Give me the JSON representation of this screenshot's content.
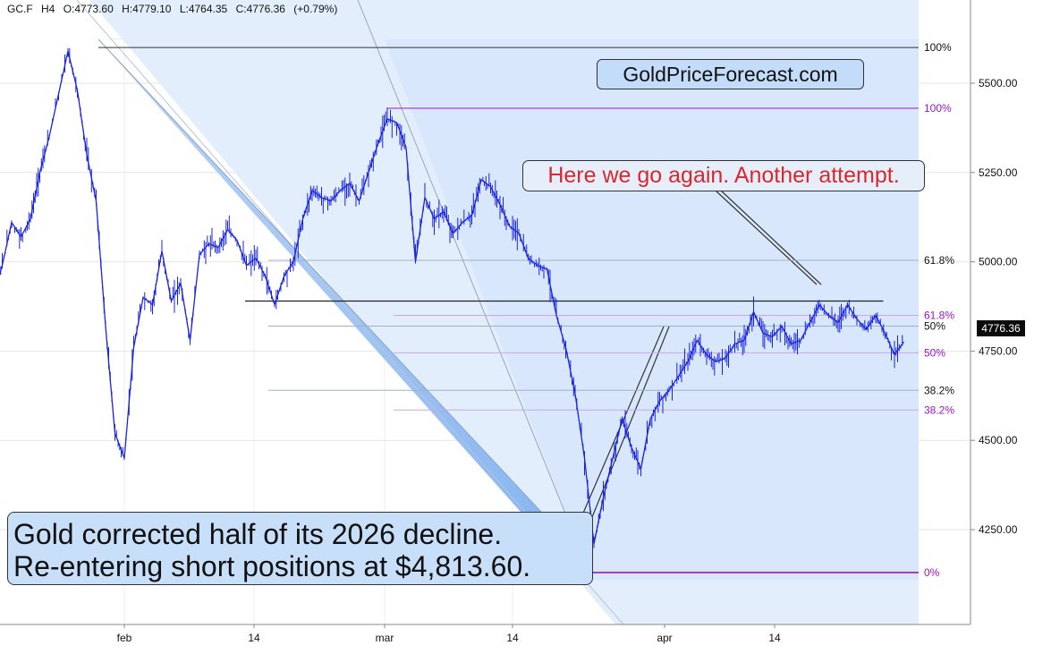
{
  "header": {
    "symbol": "GC.F",
    "timeframe": "H4",
    "open": "O:4773.60",
    "high": "H:4779.10",
    "low": "L:4764.35",
    "close": "C:4776.36",
    "change": "(+0.79%)"
  },
  "annotations": {
    "watermark": "GoldPriceForecast.com",
    "comment": "Here we go again. Another attempt.",
    "summary_line1": "Gold corrected half of its 2026 decline.",
    "summary_line2": "Re-entering short positions at $4,813.60."
  },
  "current_price": "4776.36",
  "colors": {
    "price_line": "#1a24e0",
    "fib_black": "#111111",
    "fib_purple": "#9b16c9",
    "channel_fill": "#6fa7ee",
    "comment_text": "#d7282f",
    "price_tag": "#0b0b0b"
  },
  "chart_data": {
    "type": "line",
    "title": "",
    "xlabel": "",
    "ylabel": "",
    "ylim": [
      4060,
      5780
    ],
    "y_ticks": [
      4250,
      4500,
      4750,
      5000,
      5250,
      5500
    ],
    "y_tick_labels": [
      "4250.00",
      "4500.00",
      "4750.00",
      "5000.00",
      "5250.00",
      "5500.00"
    ],
    "x_ticks": [
      "feb",
      "14",
      "mar",
      "14",
      "apr",
      "14"
    ],
    "grid": true,
    "series": [
      {
        "points": [
          [
            "Jan 12",
            4690
          ],
          [
            "Jan 13",
            4700
          ],
          [
            "Jan 14",
            4790
          ],
          [
            "Jan 15",
            4860
          ],
          [
            "Jan 16",
            4820
          ],
          [
            "Jan 18",
            4900
          ],
          [
            "Jan 19",
            4990
          ],
          [
            "Jan 20",
            5110
          ],
          [
            "Jan 21",
            5070
          ],
          [
            "Jan 22",
            5120
          ],
          [
            "Jan 23",
            5250
          ],
          [
            "Jan 24",
            5350
          ],
          [
            "Jan 26",
            5590
          ],
          [
            "Jan 27",
            5480
          ],
          [
            "Jan 28",
            5300
          ],
          [
            "Jan 29",
            5170
          ],
          [
            "Jan 30",
            4820
          ],
          [
            "Jan 31",
            4520
          ],
          [
            "Feb 1",
            4450
          ],
          [
            "Feb 2",
            4760
          ],
          [
            "Feb 3",
            4900
          ],
          [
            "Feb 4",
            4880
          ],
          [
            "Feb 5",
            5030
          ],
          [
            "Feb 6",
            4890
          ],
          [
            "Feb 7",
            4940
          ],
          [
            "Feb 8",
            4780
          ],
          [
            "Feb 9",
            5020
          ],
          [
            "Feb 10",
            5050
          ],
          [
            "Feb 11",
            5040
          ],
          [
            "Feb 12",
            5090
          ],
          [
            "Feb 13",
            5060
          ],
          [
            "Feb 14",
            4990
          ],
          [
            "Feb 15",
            5010
          ],
          [
            "Feb 16",
            4960
          ],
          [
            "Feb 17",
            4880
          ],
          [
            "Feb 18",
            4960
          ],
          [
            "Feb 19",
            5000
          ],
          [
            "Feb 20",
            5120
          ],
          [
            "Feb 21",
            5200
          ],
          [
            "Feb 22",
            5180
          ],
          [
            "Feb 23",
            5170
          ],
          [
            "Feb 24",
            5200
          ],
          [
            "Feb 25",
            5220
          ],
          [
            "Feb 26",
            5170
          ],
          [
            "Feb 27",
            5250
          ],
          [
            "Feb 28",
            5330
          ],
          [
            "Mar 1",
            5400
          ],
          [
            "Mar 2",
            5390
          ],
          [
            "Mar 3",
            5320
          ],
          [
            "Mar 4",
            5000
          ],
          [
            "Mar 5",
            5180
          ],
          [
            "Mar 6",
            5120
          ],
          [
            "Mar 7",
            5140
          ],
          [
            "Mar 8",
            5080
          ],
          [
            "Mar 9",
            5110
          ],
          [
            "Mar 10",
            5130
          ],
          [
            "Mar 11",
            5230
          ],
          [
            "Mar 12",
            5210
          ],
          [
            "Mar 13",
            5160
          ],
          [
            "Mar 14",
            5100
          ],
          [
            "Mar 15",
            5080
          ],
          [
            "Mar 16",
            5010
          ],
          [
            "Mar 17",
            4990
          ],
          [
            "Mar 18",
            4980
          ],
          [
            "Mar 19",
            4850
          ],
          [
            "Mar 20",
            4760
          ],
          [
            "Mar 21",
            4630
          ],
          [
            "Mar 22",
            4450
          ],
          [
            "Mar 23",
            4210
          ],
          [
            "Mar 24",
            4340
          ],
          [
            "Mar 25",
            4450
          ],
          [
            "Mar 26",
            4560
          ],
          [
            "Mar 27",
            4480
          ],
          [
            "Mar 28",
            4420
          ],
          [
            "Mar 29",
            4560
          ],
          [
            "Mar 30",
            4610
          ],
          [
            "Mar 31",
            4640
          ],
          [
            "Apr 1",
            4680
          ],
          [
            "Apr 2",
            4720
          ],
          [
            "Apr 3",
            4780
          ],
          [
            "Apr 4",
            4740
          ],
          [
            "Apr 5",
            4720
          ],
          [
            "Apr 6",
            4730
          ],
          [
            "Apr 7",
            4770
          ],
          [
            "Apr 8",
            4780
          ],
          [
            "Apr 9",
            4860
          ],
          [
            "Apr 10",
            4800
          ],
          [
            "Apr 11",
            4790
          ],
          [
            "Apr 12",
            4820
          ],
          [
            "Apr 13",
            4770
          ],
          [
            "Apr 14",
            4780
          ],
          [
            "Apr 15",
            4830
          ],
          [
            "Apr 16",
            4880
          ],
          [
            "Apr 17",
            4850
          ],
          [
            "Apr 18",
            4830
          ],
          [
            "Apr 19",
            4880
          ],
          [
            "Apr 20",
            4840
          ],
          [
            "Apr 21",
            4810
          ],
          [
            "Apr 22",
            4850
          ],
          [
            "Apr 23",
            4800
          ],
          [
            "Apr 24",
            4740
          ],
          [
            "Apr 25",
            4776
          ]
        ]
      }
    ],
    "fib_levels_black": [
      {
        "label": "100%",
        "value": 5600
      },
      {
        "label": "61.8%",
        "value": 5004
      },
      {
        "label": "50%",
        "value": 4820
      },
      {
        "label": "38.2%",
        "value": 4640
      }
    ],
    "fib_levels_purple": [
      {
        "label": "100%",
        "value": 5430
      },
      {
        "label": "61.8%",
        "value": 4850
      },
      {
        "label": "50%",
        "value": 4745
      },
      {
        "label": "38.2%",
        "value": 4585
      },
      {
        "label": "0%",
        "value": 4130
      }
    ],
    "resistance_line": {
      "value": 4890,
      "from": "Feb 15",
      "to": "Apr 25"
    }
  }
}
